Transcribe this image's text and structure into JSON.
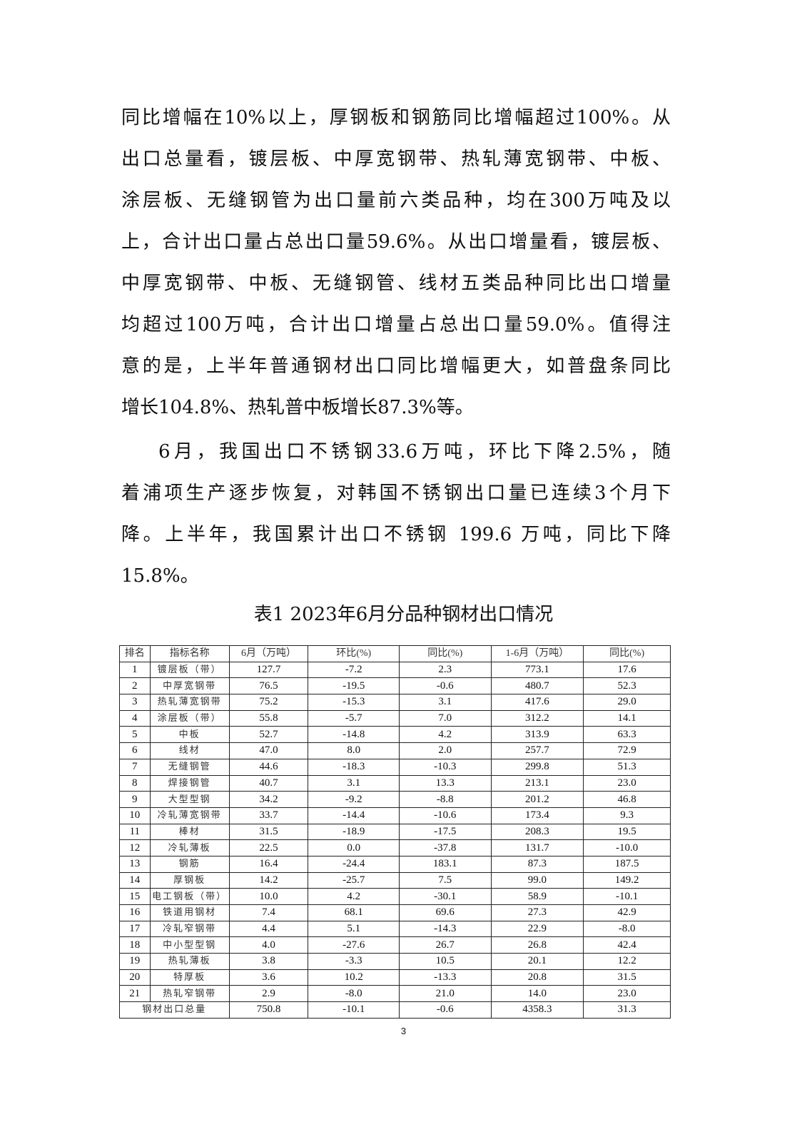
{
  "paragraph1": [
    "同比增幅在10%以上，厚钢板和钢筋同比增幅超过100%。从",
    "出口总量看，镀层板、中厚宽钢带、热轧薄宽钢带、中板、",
    "涂层板、无缝钢管为出口量前六类品种，均在300万吨及以",
    "上，合计出口量占总出口量59.6%。从出口增量看，镀层板、",
    "中厚宽钢带、中板、无缝钢管、线材五类品种同比出口增量",
    "均超过100万吨，合计出口增量占总出口量59.0%。值得注",
    "意的是，上半年普通钢材出口同比增幅更大，如普盘条同比",
    "增长104.8%、热轧普中板增长87.3%等。"
  ],
  "paragraph2": [
    "6月，我国出口不锈钢33.6万吨，环比下降2.5%，随",
    "着浦项生产逐步恢复，对韩国不锈钢出口量已连续3个月下",
    "降。上半年，我国累计出口不锈钢 199.6 万吨，同比下降",
    "15.8%。"
  ],
  "table_title": "表1 2023年6月分品种钢材出口情况",
  "table": {
    "headers": [
      "排名",
      "指标名称",
      "6月（万吨）",
      "环比(%)",
      "同比(%)",
      "1-6月（万吨）",
      "同比(%)"
    ],
    "rows": [
      [
        "1",
        "镀层板（带）",
        "127.7",
        "-7.2",
        "2.3",
        "773.1",
        "17.6"
      ],
      [
        "2",
        "中厚宽钢带",
        "76.5",
        "-19.5",
        "-0.6",
        "480.7",
        "52.3"
      ],
      [
        "3",
        "热轧薄宽钢带",
        "75.2",
        "-15.3",
        "3.1",
        "417.6",
        "29.0"
      ],
      [
        "4",
        "涂层板（带）",
        "55.8",
        "-5.7",
        "7.0",
        "312.2",
        "14.1"
      ],
      [
        "5",
        "中板",
        "52.7",
        "-14.8",
        "4.2",
        "313.9",
        "63.3"
      ],
      [
        "6",
        "线材",
        "47.0",
        "8.0",
        "2.0",
        "257.7",
        "72.9"
      ],
      [
        "7",
        "无缝钢管",
        "44.6",
        "-18.3",
        "-10.3",
        "299.8",
        "51.3"
      ],
      [
        "8",
        "焊接钢管",
        "40.7",
        "3.1",
        "13.3",
        "213.1",
        "23.0"
      ],
      [
        "9",
        "大型型钢",
        "34.2",
        "-9.2",
        "-8.8",
        "201.2",
        "46.8"
      ],
      [
        "10",
        "冷轧薄宽钢带",
        "33.7",
        "-14.4",
        "-10.6",
        "173.4",
        "9.3"
      ],
      [
        "11",
        "棒材",
        "31.5",
        "-18.9",
        "-17.5",
        "208.3",
        "19.5"
      ],
      [
        "12",
        "冷轧薄板",
        "22.5",
        "0.0",
        "-37.8",
        "131.7",
        "-10.0"
      ],
      [
        "13",
        "钢筋",
        "16.4",
        "-24.4",
        "183.1",
        "87.3",
        "187.5"
      ],
      [
        "14",
        "厚钢板",
        "14.2",
        "-25.7",
        "7.5",
        "99.0",
        "149.2"
      ],
      [
        "15",
        "电工钢板（带）",
        "10.0",
        "4.2",
        "-30.1",
        "58.9",
        "-10.1"
      ],
      [
        "16",
        "铁道用钢材",
        "7.4",
        "68.1",
        "69.6",
        "27.3",
        "42.9"
      ],
      [
        "17",
        "冷轧窄钢带",
        "4.4",
        "5.1",
        "-14.3",
        "22.9",
        "-8.0"
      ],
      [
        "18",
        "中小型型钢",
        "4.0",
        "-27.6",
        "26.7",
        "26.8",
        "42.4"
      ],
      [
        "19",
        "热轧薄板",
        "3.8",
        "-3.3",
        "10.5",
        "20.1",
        "12.2"
      ],
      [
        "20",
        "特厚板",
        "3.6",
        "10.2",
        "-13.3",
        "20.8",
        "31.5"
      ],
      [
        "21",
        "热轧窄钢带",
        "2.9",
        "-8.0",
        "21.0",
        "14.0",
        "23.0"
      ]
    ],
    "total": [
      "钢材出口总量",
      "750.8",
      "-10.1",
      "-0.6",
      "4358.3",
      "31.3"
    ]
  },
  "page_number": "3"
}
